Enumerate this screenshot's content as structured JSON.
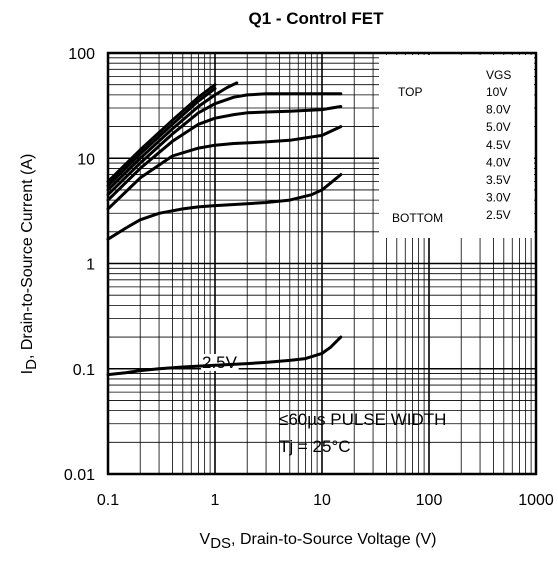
{
  "chart_data": {
    "type": "line",
    "title": "Q1 - Control FET",
    "xlabel_main": "V",
    "xlabel_sub": "DS",
    "xlabel_rest": ", Drain-to-Source Voltage (V)",
    "ylabel_main": "I",
    "ylabel_sub": "D",
    "ylabel_rest": ", Drain-to-Source Current (A)",
    "x_scale": "log",
    "y_scale": "log",
    "xlim": [
      0.1,
      1000
    ],
    "ylim": [
      0.01,
      100
    ],
    "x_ticks": [
      "0.1",
      "1",
      "10",
      "100",
      "1000"
    ],
    "y_ticks": [
      "100",
      "10",
      "1",
      "0.1",
      "0.01"
    ],
    "grid": true,
    "legend": {
      "header": "VGS",
      "top_label": "TOP",
      "bottom_label": "BOTTOM",
      "entries": [
        "10V",
        "8.0V",
        "5.0V",
        "4.5V",
        "4.0V",
        "3.5V",
        "3.0V",
        "2.5V"
      ]
    },
    "annotations": {
      "curve_label": "2.5V",
      "pulse": "≤60µs PULSE WIDTH",
      "tj": "Tj = 25°C"
    },
    "series": [
      {
        "name": "10V",
        "x": [
          0.1,
          0.2,
          0.4,
          0.7,
          1.0
        ],
        "y": [
          6.0,
          12.0,
          23.0,
          38.0,
          50.0
        ]
      },
      {
        "name": "8.0V",
        "x": [
          0.1,
          0.2,
          0.4,
          0.7,
          1.0
        ],
        "y": [
          5.5,
          11.0,
          21.0,
          35.0,
          46.0
        ]
      },
      {
        "name": "5.0V",
        "x": [
          0.1,
          0.2,
          0.4,
          0.7,
          1.0,
          1.3,
          1.6
        ],
        "y": [
          5.0,
          10.0,
          19.0,
          31.0,
          40.0,
          47.0,
          52.0
        ]
      },
      {
        "name": "4.5V",
        "x": [
          0.1,
          0.2,
          0.4,
          0.7,
          1.0,
          1.5,
          2.0,
          3.0,
          5.0,
          10.0,
          15.0
        ],
        "y": [
          4.5,
          9.0,
          17.0,
          27.0,
          33.0,
          38.0,
          40.0,
          41.0,
          41.0,
          41.0,
          41.0
        ]
      },
      {
        "name": "4.0V",
        "x": [
          0.1,
          0.2,
          0.4,
          0.7,
          1.0,
          1.5,
          2.0,
          3.0,
          5.0,
          10.0,
          15.0
        ],
        "y": [
          4.0,
          8.0,
          14.5,
          21.0,
          24.0,
          26.0,
          27.0,
          27.5,
          28.0,
          29.0,
          31.0
        ]
      },
      {
        "name": "3.5V",
        "x": [
          0.1,
          0.2,
          0.4,
          0.7,
          1.0,
          1.5,
          2.0,
          3.0,
          5.0,
          10.0,
          15.0
        ],
        "y": [
          3.3,
          6.5,
          10.5,
          12.5,
          13.3,
          13.8,
          14.0,
          14.3,
          14.8,
          16.5,
          20.0
        ]
      },
      {
        "name": "3.0V",
        "x": [
          0.1,
          0.15,
          0.2,
          0.3,
          0.5,
          0.7,
          1.0,
          2.0,
          3.0,
          5.0,
          8.0,
          10.0,
          12.0,
          15.0
        ],
        "y": [
          1.7,
          2.2,
          2.6,
          3.0,
          3.3,
          3.45,
          3.55,
          3.7,
          3.8,
          4.0,
          4.5,
          5.0,
          5.8,
          7.0
        ]
      },
      {
        "name": "2.5V",
        "x": [
          0.1,
          0.15,
          0.2,
          0.3,
          0.5,
          1.0,
          2.0,
          3.0,
          5.0,
          7.0,
          10.0,
          12.0,
          15.0
        ],
        "y": [
          0.088,
          0.092,
          0.096,
          0.1,
          0.104,
          0.108,
          0.112,
          0.115,
          0.12,
          0.125,
          0.14,
          0.16,
          0.2
        ]
      }
    ]
  }
}
